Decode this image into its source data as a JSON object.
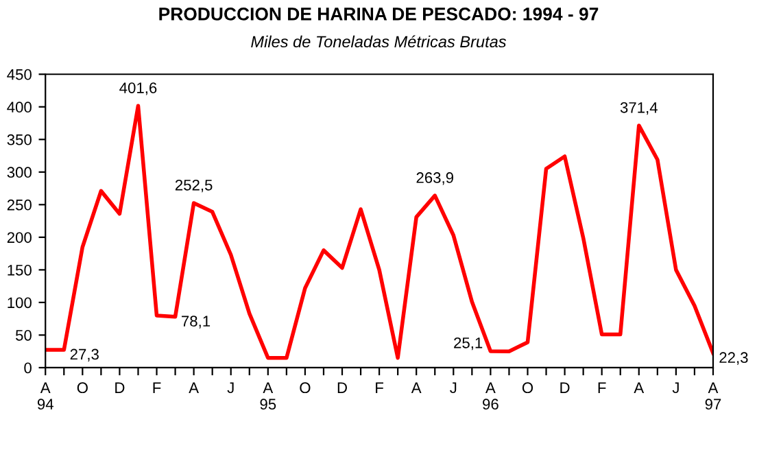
{
  "chart_data": {
    "type": "line",
    "title": "PRODUCCION DE HARINA DE PESCADO: 1994 - 97",
    "subtitle": "Miles de Toneladas Métricas Brutas",
    "categories": [
      "A\n94",
      null,
      "O",
      null,
      "D",
      null,
      "F",
      null,
      "A",
      null,
      "J",
      null,
      "A\n95",
      null,
      "O",
      null,
      "D",
      null,
      "F",
      null,
      "A",
      null,
      "J",
      null,
      "A\n96",
      null,
      "O",
      null,
      "D",
      null,
      "F",
      null,
      "A",
      null,
      "J",
      null,
      "A\n97"
    ],
    "series": [
      {
        "color": "#ff0000",
        "values": [
          27.3,
          27.3,
          185,
          271,
          236,
          401.6,
          80,
          78.1,
          252.5,
          239,
          173,
          83,
          15,
          15,
          122,
          180,
          153,
          243,
          150,
          15,
          231,
          263.9,
          203,
          101,
          25.1,
          25,
          39,
          305,
          324,
          199,
          51,
          51,
          371.4,
          319,
          150,
          95,
          22.3
        ],
        "value_labels": [
          null,
          "27,3",
          null,
          null,
          null,
          "401,6",
          null,
          "78,1",
          "252,5",
          null,
          null,
          null,
          null,
          null,
          null,
          null,
          null,
          null,
          null,
          null,
          null,
          "263,9",
          null,
          null,
          "25,1",
          null,
          null,
          null,
          null,
          null,
          null,
          null,
          "371,4",
          null,
          null,
          null,
          "22,3"
        ]
      }
    ],
    "ylim": [
      0,
      450
    ],
    "yticks": [
      0,
      50,
      100,
      150,
      200,
      250,
      300,
      350,
      400,
      450
    ],
    "grid": false,
    "legend": false,
    "marker": "none",
    "line_style": "solid"
  }
}
